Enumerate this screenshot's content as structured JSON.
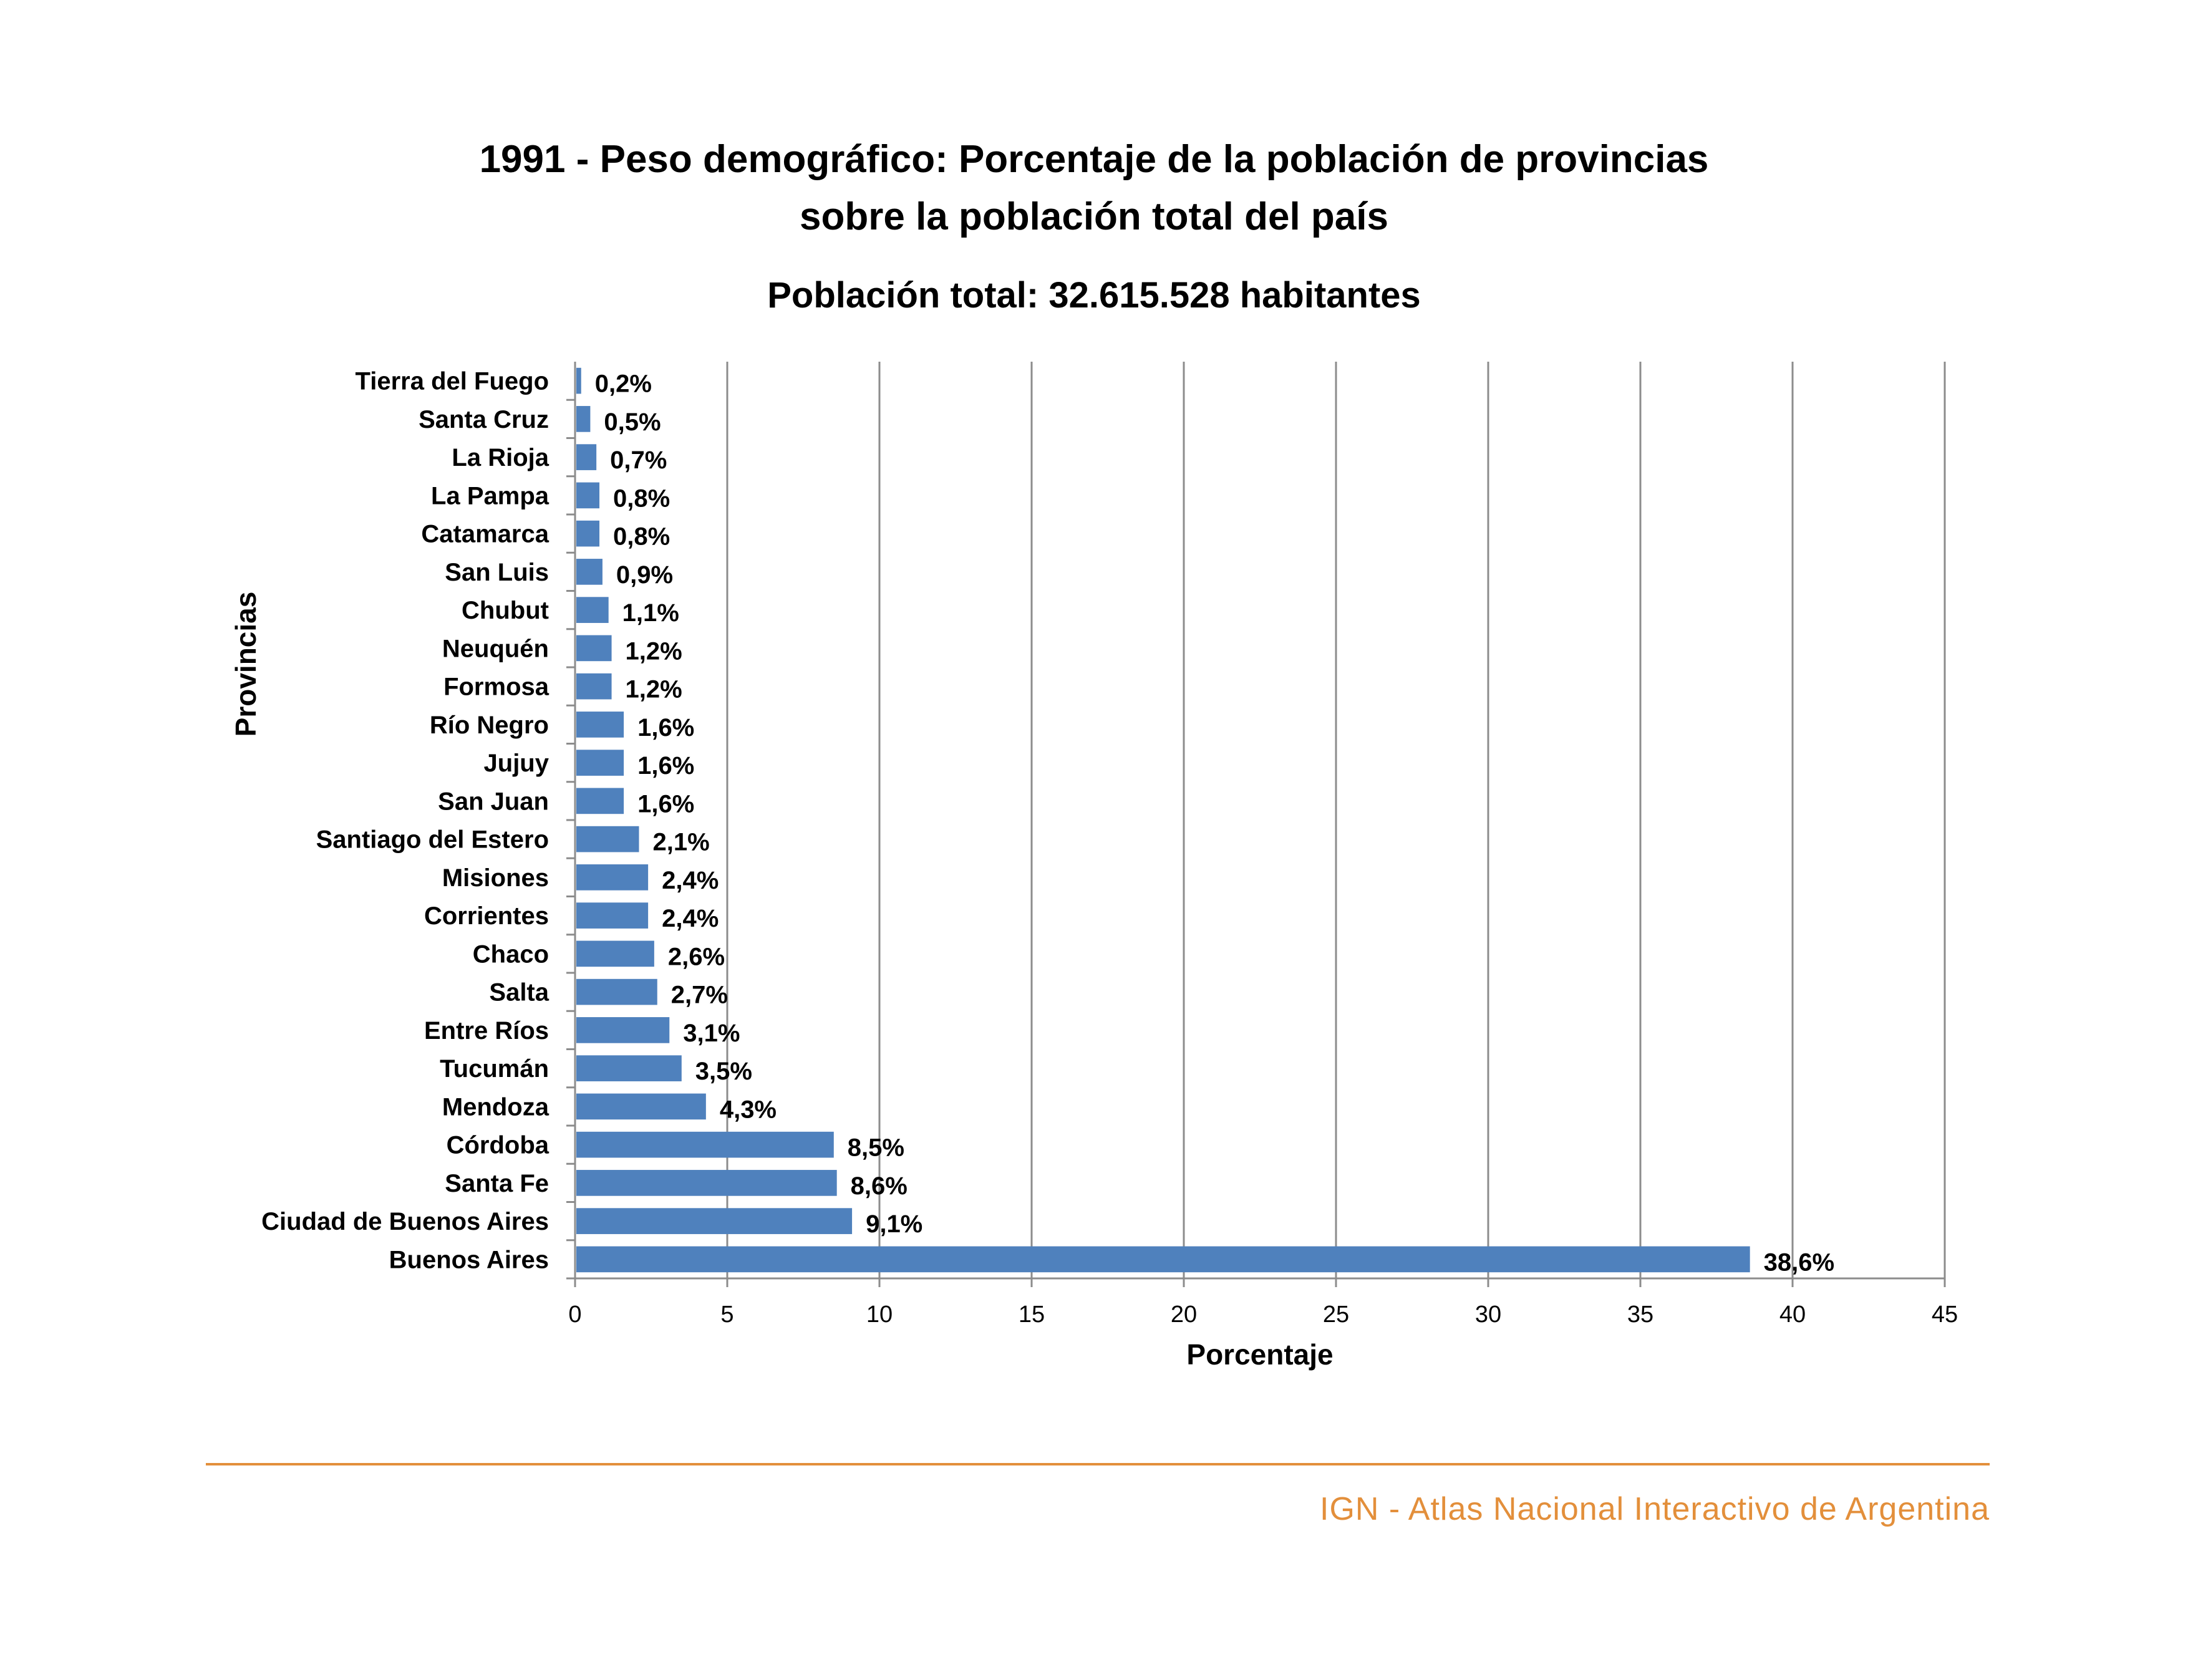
{
  "header": {
    "title_line1": "1991 - Peso demográfico: Porcentaje de la población de provincias",
    "title_line2": "sobre la población total del país",
    "subtitle": "Población total: 32.615.528 habitantes"
  },
  "footer": {
    "text": "IGN - Atlas Nacional Interactivo de Argentina"
  },
  "colors": {
    "bar": "#4f81bd",
    "grid": "#8c8c8c",
    "accent": "#e38f3b"
  },
  "chart_data": {
    "type": "bar",
    "orientation": "horizontal",
    "xlabel": "Porcentaje",
    "ylabel": "Provincias",
    "xlim": [
      0,
      45
    ],
    "xticks": [
      0,
      5,
      10,
      15,
      20,
      25,
      30,
      35,
      40,
      45
    ],
    "grid": true,
    "categories": [
      "Tierra del Fuego",
      "Santa Cruz",
      "La Rioja",
      "La Pampa",
      "Catamarca",
      "San Luis",
      "Chubut",
      "Neuquén",
      "Formosa",
      "Río Negro",
      "Jujuy",
      "San Juan",
      "Santiago del Estero",
      "Misiones",
      "Corrientes",
      "Chaco",
      "Salta",
      "Entre Ríos",
      "Tucumán",
      "Mendoza",
      "Córdoba",
      "Santa Fe",
      "Ciudad de Buenos Aires",
      "Buenos Aires"
    ],
    "values": [
      0.2,
      0.5,
      0.7,
      0.8,
      0.8,
      0.9,
      1.1,
      1.2,
      1.2,
      1.6,
      1.6,
      1.6,
      2.1,
      2.4,
      2.4,
      2.6,
      2.7,
      3.1,
      3.5,
      4.3,
      8.5,
      8.6,
      9.1,
      38.6
    ],
    "data_labels": [
      "0,2%",
      "0,5%",
      "0,7%",
      "0,8%",
      "0,8%",
      "0,9%",
      "1,1%",
      "1,2%",
      "1,2%",
      "1,6%",
      "1,6%",
      "1,6%",
      "2,1%",
      "2,4%",
      "2,4%",
      "2,6%",
      "2,7%",
      "3,1%",
      "3,5%",
      "4,3%",
      "8,5%",
      "8,6%",
      "9,1%",
      "38,6%"
    ]
  }
}
